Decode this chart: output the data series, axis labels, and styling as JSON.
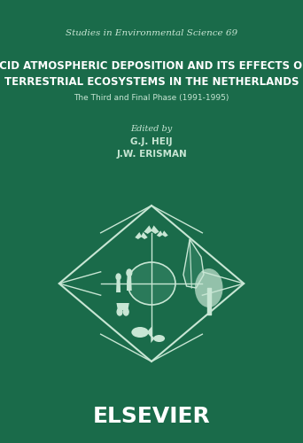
{
  "bg_color": "#1a6b4a",
  "text_color": "#c8e6d4",
  "white_color": "#ffffff",
  "series_title": "Studies in Environmental Science 69",
  "main_title_line1": "ACID ATMOSPHERIC DEPOSITION AND ITS EFFECTS ON",
  "main_title_line2": "TERRESTRIAL ECOSYSTEMS IN THE NETHERLANDS",
  "subtitle": "The Third and Final Phase (1991-1995)",
  "edited_by": "Edited by",
  "editor1": "G.J. HEIJ",
  "editor2": "J.W. ERISMAN",
  "publisher": "ELSEVIER",
  "fig_width": 3.42,
  "fig_height": 5.0,
  "dpi": 100
}
